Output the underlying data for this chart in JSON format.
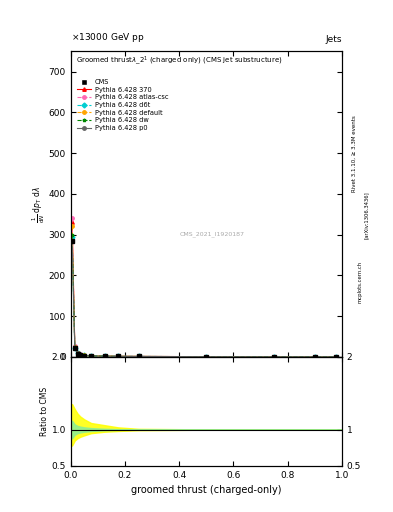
{
  "title_energy": "13000 GeV pp",
  "title_jets": "Jets",
  "watermark": "CMS_2021_I1920187",
  "ylabel_ratio": "Ratio to CMS",
  "xlabel": "groomed thrust (charged-only)",
  "xlim": [
    0,
    1
  ],
  "ylim_main": [
    0,
    750
  ],
  "ylim_ratio": [
    0.5,
    2.0
  ],
  "cms_data_x": [
    0.005,
    0.015,
    0.025,
    0.035,
    0.05,
    0.075,
    0.125,
    0.175,
    0.25,
    0.5,
    0.75,
    0.9,
    0.98
  ],
  "cms_data_y": [
    285,
    22,
    8,
    5,
    3,
    2,
    1.5,
    1,
    0.8,
    0.3,
    0.1,
    0.05,
    0.02
  ],
  "pythia_370_x": [
    0.005,
    0.015,
    0.025,
    0.035,
    0.05,
    0.075,
    0.125,
    0.175,
    0.25,
    0.5,
    0.75,
    0.9,
    0.98
  ],
  "pythia_370_y": [
    330,
    25,
    9,
    5.5,
    3.5,
    2.2,
    1.6,
    1.1,
    0.85,
    0.32,
    0.12,
    0.06,
    0.025
  ],
  "pythia_atlas_x": [
    0.005,
    0.015,
    0.025,
    0.035,
    0.05,
    0.075,
    0.125,
    0.175,
    0.25,
    0.5,
    0.75,
    0.9,
    0.98
  ],
  "pythia_atlas_y": [
    340,
    26,
    9.5,
    5.8,
    3.7,
    2.3,
    1.7,
    1.15,
    0.9,
    0.33,
    0.13,
    0.065,
    0.03
  ],
  "pythia_d6t_x": [
    0.005,
    0.015,
    0.025,
    0.035,
    0.05,
    0.075,
    0.125,
    0.175,
    0.25,
    0.5,
    0.75,
    0.9,
    0.98
  ],
  "pythia_d6t_y": [
    295,
    22,
    8.5,
    5.2,
    3.2,
    2.0,
    1.5,
    1.05,
    0.82,
    0.3,
    0.11,
    0.055,
    0.022
  ],
  "pythia_default_x": [
    0.005,
    0.015,
    0.025,
    0.035,
    0.05,
    0.075,
    0.125,
    0.175,
    0.25,
    0.5,
    0.75,
    0.9,
    0.98
  ],
  "pythia_default_y": [
    320,
    24,
    9,
    5.5,
    3.4,
    2.15,
    1.6,
    1.1,
    0.87,
    0.31,
    0.12,
    0.06,
    0.025
  ],
  "pythia_dw_x": [
    0.005,
    0.015,
    0.025,
    0.035,
    0.05,
    0.075,
    0.125,
    0.175,
    0.25,
    0.5,
    0.75,
    0.9,
    0.98
  ],
  "pythia_dw_y": [
    300,
    23,
    8.7,
    5.3,
    3.3,
    2.1,
    1.55,
    1.07,
    0.83,
    0.31,
    0.11,
    0.055,
    0.023
  ],
  "pythia_p0_x": [
    0.005,
    0.015,
    0.025,
    0.035,
    0.05,
    0.075,
    0.125,
    0.175,
    0.25,
    0.5,
    0.75,
    0.9,
    0.98
  ],
  "pythia_p0_y": [
    285,
    22,
    8.3,
    5.1,
    3.1,
    2.0,
    1.5,
    1.03,
    0.8,
    0.29,
    0.1,
    0.05,
    0.021
  ],
  "ratio_band_y_lo": [
    0.88,
    0.93,
    0.95,
    0.96,
    0.97,
    0.98,
    0.99,
    0.995,
    0.997,
    0.999,
    0.999,
    0.999,
    0.999
  ],
  "ratio_band_y_hi": [
    1.12,
    1.07,
    1.05,
    1.04,
    1.03,
    1.02,
    1.01,
    1.005,
    1.003,
    1.001,
    1.001,
    1.001,
    1.001
  ],
  "ratio_band2_y_lo": [
    0.78,
    0.85,
    0.88,
    0.9,
    0.92,
    0.95,
    0.97,
    0.98,
    0.99,
    0.998,
    0.998,
    0.998,
    0.998
  ],
  "ratio_band2_y_hi": [
    1.35,
    1.28,
    1.22,
    1.18,
    1.14,
    1.09,
    1.06,
    1.03,
    1.01,
    1.002,
    1.002,
    1.002,
    1.002
  ],
  "color_cms": "#000000",
  "color_370": "#ff0000",
  "color_atlas": "#ff69b4",
  "color_d6t": "#00ced1",
  "color_default": "#ffa500",
  "color_dw": "#008800",
  "color_p0": "#666666",
  "color_band_inner": "#90ee90",
  "color_band_outer": "#ffff00",
  "bg_color": "#ffffff"
}
